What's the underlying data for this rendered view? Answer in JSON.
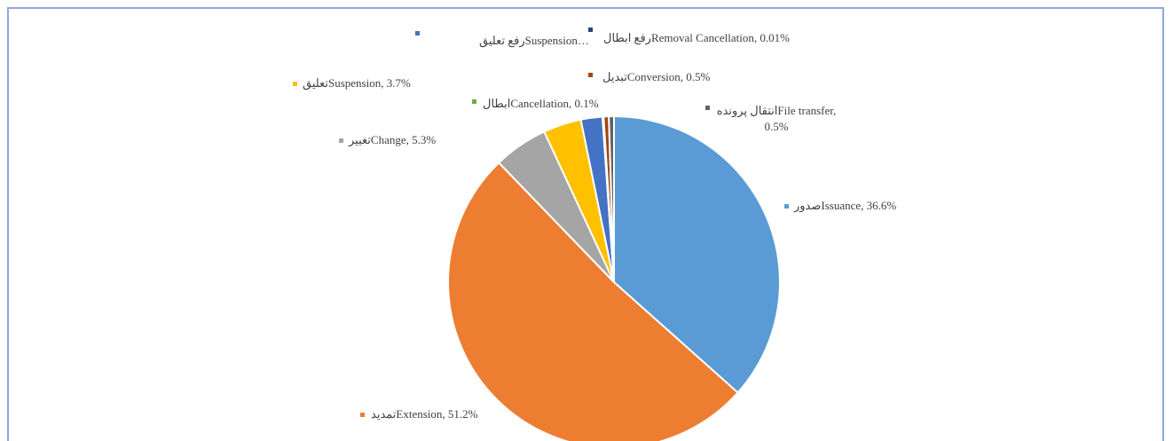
{
  "chart_data": {
    "type": "pie",
    "categories": [
      "صدورIssuance",
      "تمدیدExtension",
      "تغییرChange",
      "تعلیقSuspension",
      "رفع تعلیقSuspension…",
      "ابطالCancellation",
      "رفع ابطالRemoval Cancellation",
      "تبدیلConversion",
      "انتقال پروندهFile transfer"
    ],
    "values": [
      36.6,
      51.2,
      5.3,
      3.7,
      2.1,
      0.1,
      0.01,
      0.5,
      0.5
    ],
    "value_labels": [
      "صدورIssuance, 36.6%",
      "تمدیدExtension, 51.2%",
      "تغییرChange, 5.3%",
      "تعلیقSuspension, 3.7%",
      "رفع تعلیقSuspension…",
      "ابطالCancellation, 0.1%",
      "رفع ابطالRemoval Cancellation, 0.01%",
      "تبدیلConversion, 0.5%",
      "انتقال پروندهFile transfer, 0.5%"
    ],
    "colors": [
      "#5b9bd5",
      "#ed7d31",
      "#a5a5a5",
      "#ffc000",
      "#4472c4",
      "#70ad47",
      "#264478",
      "#9e480e",
      "#636363"
    ]
  }
}
